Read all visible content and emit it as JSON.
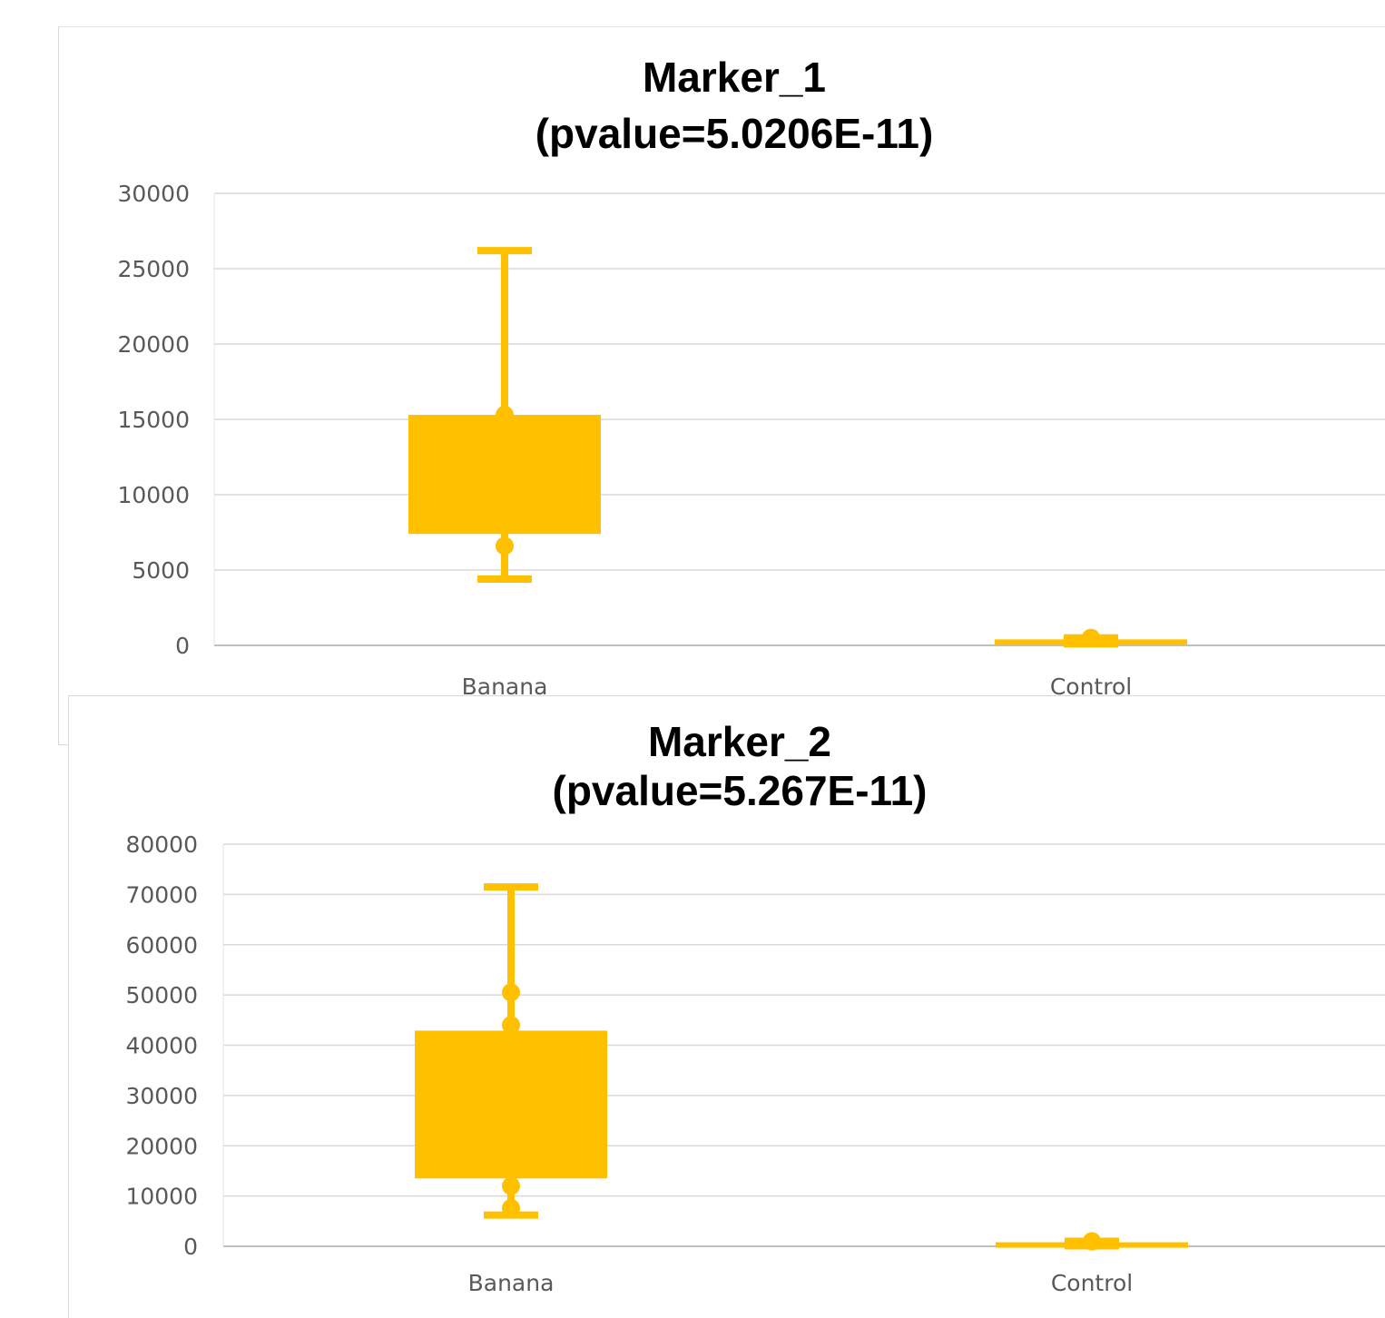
{
  "chart_data": [
    {
      "type": "box",
      "title_lines": [
        "Marker_1",
        "(pvalue=5.0206E-11)"
      ],
      "xlabel": "",
      "ylabel": "",
      "ylim": [
        0,
        30000
      ],
      "yticks": [
        "30000",
        "25000",
        "20000",
        "15000",
        "10000",
        "5000",
        "0"
      ],
      "grid": true,
      "color": "#FFC000",
      "categories": [
        "Banana",
        "Control"
      ],
      "boxes": [
        {
          "category": "Banana",
          "min": 4400,
          "q1": 7400,
          "q3": 15300,
          "max": 26200,
          "points": [
            15300,
            6600
          ]
        },
        {
          "category": "Control",
          "min": 100,
          "q1": 150,
          "q3": 400,
          "max": 500,
          "points": [
            500,
            500
          ]
        }
      ]
    },
    {
      "type": "box",
      "title_lines": [
        "Marker_2",
        "(pvalue=5.267E-11)"
      ],
      "xlabel": "",
      "ylabel": "",
      "ylim": [
        0,
        80000
      ],
      "yticks": [
        "80000",
        "70000",
        "60000",
        "50000",
        "40000",
        "30000",
        "20000",
        "10000",
        "0"
      ],
      "grid": true,
      "color": "#FFC000",
      "categories": [
        "Banana",
        "Control"
      ],
      "boxes": [
        {
          "category": "Banana",
          "min": 6200,
          "q1": 13500,
          "q3": 42900,
          "max": 71500,
          "points": [
            50500,
            44000,
            12000,
            7600
          ]
        },
        {
          "category": "Control",
          "min": 100,
          "q1": 200,
          "q3": 800,
          "max": 1000,
          "points": [
            1000,
            1000
          ]
        }
      ]
    }
  ]
}
